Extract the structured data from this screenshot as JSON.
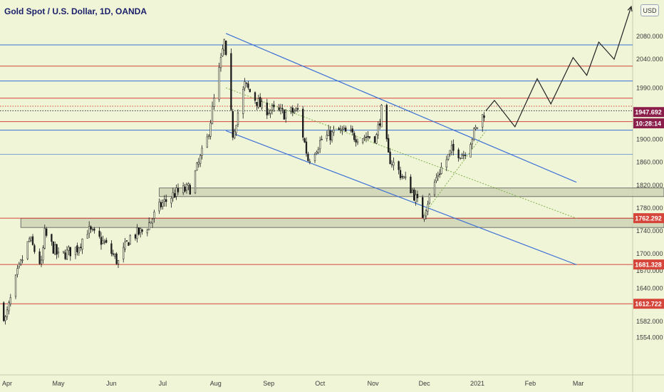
{
  "header": {
    "symbol_title": "Gold Spot / U.S. Dollar, 1D, OANDA",
    "currency": "USD"
  },
  "colors": {
    "background": "#f0f5d8",
    "candle": "#1b1b1b",
    "channel_line": "#3a6fd6",
    "resistance_blue": "#3a6fd6",
    "support_red": "#d6453a",
    "zone_fill": "#c9cfb0",
    "projection": "#222222",
    "price_tag_bg": "#8a1d4a",
    "red_tag_bg": "#d6453a"
  },
  "chart_data": {
    "type": "candlestick",
    "instrument": "XAUUSD",
    "timeframe": "1D",
    "y_axis": {
      "ticks": [
        "2080.000",
        "2040.000",
        "1990.000",
        "1900.000",
        "1860.000",
        "1820.000",
        "1780.000",
        "1740.000",
        "1700.000",
        "1670.000",
        "1640.000",
        "1582.000",
        "1554.000"
      ],
      "ylim": [
        1540,
        2140
      ]
    },
    "x_axis": {
      "ticks": [
        "Apr",
        "May",
        "Jun",
        "Jul",
        "Aug",
        "Sep",
        "Oct",
        "Nov",
        "Dec",
        "2021",
        "Feb",
        "Mar"
      ]
    },
    "price_tags": [
      {
        "label": "1947.692",
        "value": 1947.692,
        "style": "current"
      },
      {
        "label": "10:28:14",
        "value": 1928,
        "style": "countdown"
      },
      {
        "label": "1762.292",
        "value": 1762.292,
        "style": "red"
      },
      {
        "label": "1681.328",
        "value": 1681.328,
        "style": "red"
      },
      {
        "label": "1612.722",
        "value": 1612.722,
        "style": "red"
      }
    ],
    "horizontal_levels": [
      {
        "value": 2065,
        "color": "blue"
      },
      {
        "value": 2028,
        "color": "red"
      },
      {
        "value": 2002,
        "color": "blue"
      },
      {
        "value": 1972,
        "color": "red"
      },
      {
        "value": 1958,
        "color": "red",
        "style": "dotted"
      },
      {
        "value": 1950,
        "color": "black",
        "style": "dotted"
      },
      {
        "value": 1931,
        "color": "red"
      },
      {
        "value": 1916,
        "color": "blue"
      },
      {
        "value": 1874,
        "color": "blue",
        "faint": true
      },
      {
        "value": 1762.292,
        "color": "red"
      },
      {
        "value": 1681.328,
        "color": "red"
      },
      {
        "value": 1612.722,
        "color": "red"
      }
    ],
    "zones": [
      {
        "from": 1800,
        "to": 1815,
        "start_date": "2020-06-29"
      },
      {
        "from": 1746,
        "to": 1762,
        "start_date": "2020-04-09"
      }
    ],
    "channel": {
      "upper": [
        {
          "date": "2020-08-07",
          "value": 2085
        },
        {
          "date": "2021-02-28",
          "value": 1825
        }
      ],
      "lower": [
        {
          "date": "2020-08-07",
          "value": 1915
        },
        {
          "date": "2021-02-28",
          "value": 1681
        }
      ]
    },
    "trendlines": [
      {
        "from": {
          "date": "2020-08-07",
          "value": 1990
        },
        "to": {
          "date": "2021-02-28",
          "value": 1762
        },
        "style": "dotted",
        "color": "green"
      },
      {
        "from": {
          "date": "2020-11-30",
          "value": 1766
        },
        "to": {
          "date": "2021-01-06",
          "value": 1915
        },
        "style": "dotted",
        "color": "green"
      }
    ],
    "projection_path": [
      {
        "date": "2021-01-06",
        "value": 1950
      },
      {
        "date": "2021-01-11",
        "value": 1968
      },
      {
        "date": "2021-01-23",
        "value": 1922
      },
      {
        "date": "2021-02-05",
        "value": 2006
      },
      {
        "date": "2021-02-13",
        "value": 1962
      },
      {
        "date": "2021-02-26",
        "value": 2043
      },
      {
        "date": "2021-03-06",
        "value": 2012
      },
      {
        "date": "2021-03-13",
        "value": 2070
      },
      {
        "date": "2021-03-22",
        "value": 2040
      },
      {
        "date": "2021-04-01",
        "value": 2132
      }
    ],
    "anchors": [
      [
        "2020-03-28",
        1612
      ],
      [
        "2020-03-31",
        1585
      ],
      [
        "2020-04-07",
        1665
      ],
      [
        "2020-04-14",
        1725
      ],
      [
        "2020-04-21",
        1680
      ],
      [
        "2020-04-23",
        1735
      ],
      [
        "2020-05-01",
        1695
      ],
      [
        "2020-05-12",
        1710
      ],
      [
        "2020-05-18",
        1742
      ],
      [
        "2020-05-28",
        1718
      ],
      [
        "2020-06-05",
        1685
      ],
      [
        "2020-06-12",
        1730
      ],
      [
        "2020-06-20",
        1740
      ],
      [
        "2020-06-30",
        1785
      ],
      [
        "2020-07-08",
        1805
      ],
      [
        "2020-07-17",
        1815
      ],
      [
        "2020-07-27",
        1900
      ],
      [
        "2020-08-06",
        2070
      ],
      [
        "2020-08-11",
        1910
      ],
      [
        "2020-08-18",
        1995
      ],
      [
        "2020-08-28",
        1955
      ],
      [
        "2020-09-10",
        1945
      ],
      [
        "2020-09-18",
        1950
      ],
      [
        "2020-09-24",
        1865
      ],
      [
        "2020-10-02",
        1900
      ],
      [
        "2020-10-12",
        1915
      ],
      [
        "2020-10-22",
        1905
      ],
      [
        "2020-11-03",
        1905
      ],
      [
        "2020-11-06",
        1950
      ],
      [
        "2020-11-10",
        1870
      ],
      [
        "2020-11-24",
        1810
      ],
      [
        "2020-11-30",
        1768
      ],
      [
        "2020-12-09",
        1840
      ],
      [
        "2020-12-17",
        1880
      ],
      [
        "2020-12-24",
        1875
      ],
      [
        "2021-01-05",
        1947
      ]
    ]
  }
}
